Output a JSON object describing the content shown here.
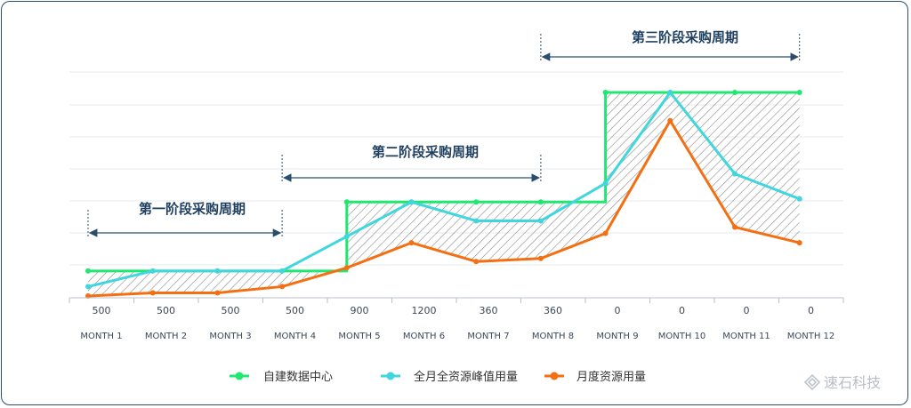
{
  "chart_data": {
    "type": "line",
    "categories": [
      "MONTH 1",
      "MONTH 2",
      "MONTH 3",
      "MONTH 4",
      "MONTH 5",
      "MONTH 6",
      "MONTH 7",
      "MONTH 8",
      "MONTH 9",
      "MONTH 10",
      "MONTH 11",
      "MONTH 12"
    ],
    "value_labels": [
      "500",
      "500",
      "500",
      "500",
      "900",
      "1200",
      "360",
      "360",
      "0",
      "0",
      "0",
      "0"
    ],
    "ylim": [
      0,
      100
    ],
    "grid": true,
    "legend_position": "bottom",
    "series": [
      {
        "name": "自建数据中心",
        "color": "#1ee86f",
        "values": [
          8,
          8,
          8,
          8,
          30,
          30,
          30,
          30,
          65,
          65,
          65,
          65
        ]
      },
      {
        "name": "全月全资源峰值用量",
        "color": "#40d6dd",
        "values": [
          3,
          8,
          8,
          8,
          19,
          30,
          24,
          24,
          36,
          65,
          39,
          31
        ]
      },
      {
        "name": "月度资源用量",
        "color": "#f36f12",
        "values": [
          0,
          1,
          1,
          3,
          9,
          17,
          11,
          12,
          20,
          56,
          22,
          17
        ]
      }
    ],
    "annotations": [
      "第一阶段采购周期",
      "第二阶段采购周期",
      "第三阶段采购周期"
    ]
  },
  "legend": {
    "item1": "自建数据中心",
    "item2": "全月全资源峰值用量",
    "item3": "月度资源用量"
  },
  "watermark": "速石科技"
}
